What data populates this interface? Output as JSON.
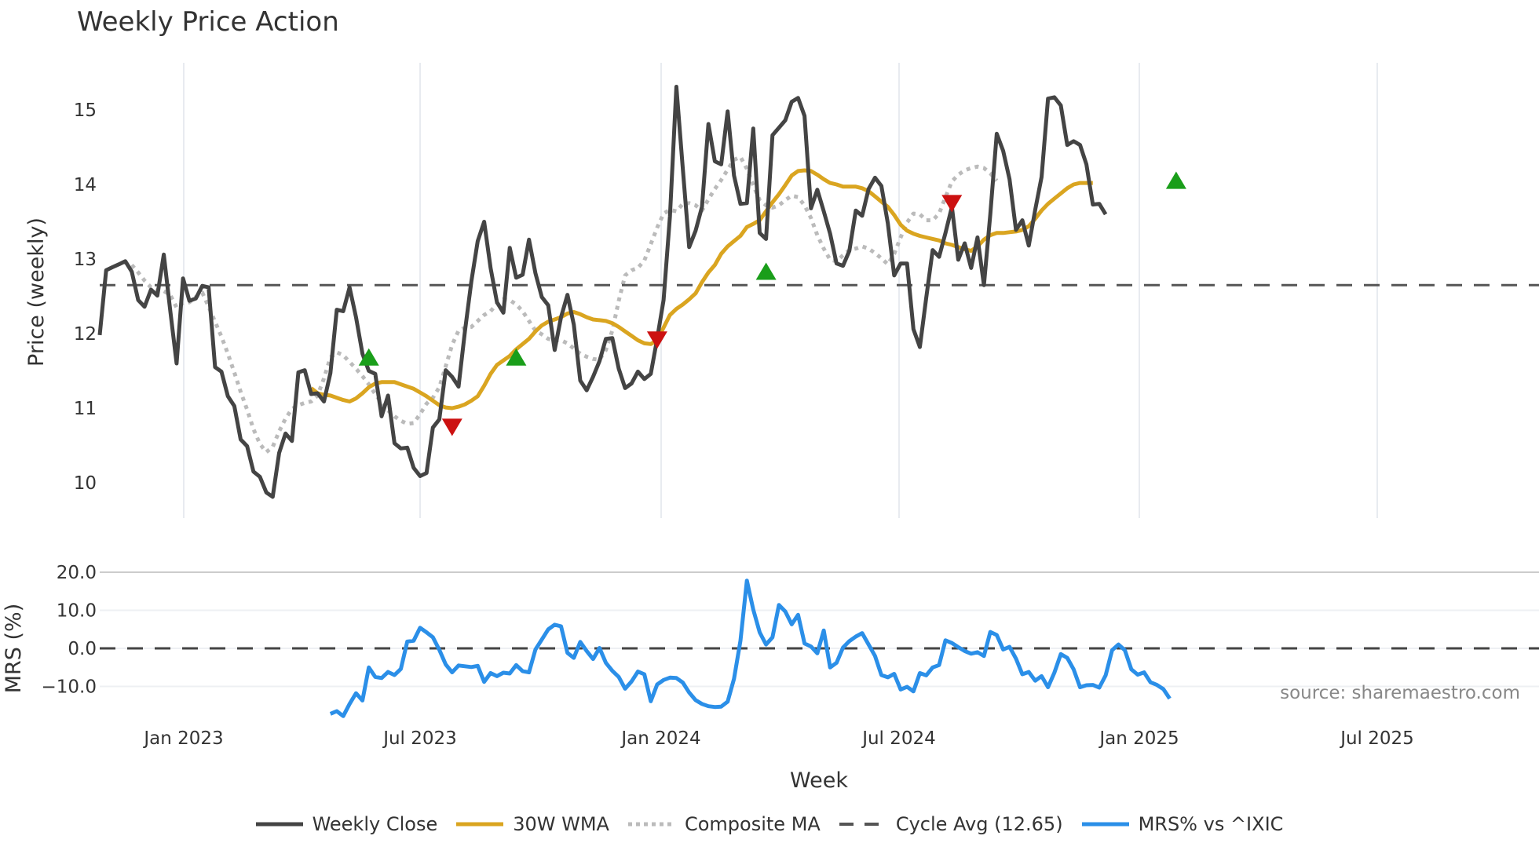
{
  "chart_data": {
    "type": "line",
    "title": "Weekly Price Action",
    "xlabel": "Week",
    "x_ticks": [
      "Jan 2023",
      "Jul 2023",
      "Jan 2024",
      "Jul 2024",
      "Jan 2025",
      "Jul 2025"
    ],
    "panels": [
      {
        "name": "price",
        "ylabel": "Price (weekly)",
        "ylim": [
          9.55,
          15.6
        ],
        "y_ticks": [
          10,
          11,
          12,
          13,
          14,
          15
        ],
        "grid": "vertical",
        "series": [
          {
            "name": "Weekly Close",
            "color": "#444444",
            "style": "solid",
            "start_week": 0,
            "values": [
              11.98,
              12.85,
              12.89,
              12.93,
              12.97,
              12.83,
              12.45,
              12.36,
              12.59,
              12.51,
              13.06,
              12.31,
              11.6,
              12.74,
              12.44,
              12.47,
              12.64,
              12.62,
              11.55,
              11.49,
              11.16,
              11.03,
              10.58,
              10.49,
              10.15,
              10.08,
              9.87,
              9.81,
              10.4,
              10.66,
              10.56,
              11.48,
              11.51,
              11.19,
              11.2,
              11.09,
              11.47,
              12.32,
              12.3,
              12.62,
              12.22,
              11.73,
              11.5,
              11.46,
              10.89,
              11.17,
              10.53,
              10.46,
              10.47,
              10.2,
              10.09,
              10.13,
              10.74,
              10.85,
              11.51,
              11.42,
              11.29,
              12.03,
              12.7,
              13.24,
              13.5,
              12.88,
              12.42,
              12.28,
              13.15,
              12.75,
              12.79,
              13.26,
              12.81,
              12.49,
              12.38,
              11.78,
              12.22,
              12.52,
              12.12,
              11.37,
              11.24,
              11.42,
              11.63,
              11.93,
              11.94,
              11.53,
              11.27,
              11.33,
              11.49,
              11.39,
              11.46,
              11.93,
              12.45,
              13.57,
              15.31,
              14.21,
              13.16,
              13.38,
              13.7,
              14.81,
              14.31,
              14.27,
              14.98,
              14.12,
              13.74,
              13.75,
              14.75,
              13.35,
              13.27,
              14.66,
              14.76,
              14.86,
              15.11,
              15.16,
              14.92,
              13.68,
              13.93,
              13.64,
              13.34,
              12.94,
              12.91,
              13.11,
              13.65,
              13.58,
              13.94,
              14.09,
              13.98,
              13.48,
              12.78,
              12.94,
              12.94,
              12.06,
              11.82,
              12.48,
              13.12,
              13.03,
              13.35,
              13.7,
              12.99,
              13.21,
              12.88,
              13.29,
              12.65,
              13.6,
              14.68,
              14.45,
              14.07,
              13.39,
              13.52,
              13.18,
              13.66,
              14.1,
              15.15,
              15.17,
              15.06,
              14.53,
              14.58,
              14.53,
              14.27,
              13.73,
              13.74,
              13.6
            ]
          },
          {
            "name": "30W WMA",
            "color": "#DAA520",
            "style": "solid",
            "start_week": 33,
            "values": [
              11.27,
              11.2,
              11.18,
              11.17,
              11.14,
              11.11,
              11.09,
              11.13,
              11.2,
              11.28,
              11.33,
              11.35,
              11.35,
              11.35,
              11.32,
              11.29,
              11.26,
              11.21,
              11.16,
              11.1,
              11.04,
              11.01,
              11.0,
              11.02,
              11.05,
              11.1,
              11.16,
              11.3,
              11.46,
              11.58,
              11.64,
              11.7,
              11.79,
              11.86,
              11.93,
              12.03,
              12.11,
              12.16,
              12.19,
              12.22,
              12.27,
              12.29,
              12.26,
              12.22,
              12.19,
              12.18,
              12.17,
              12.14,
              12.09,
              12.03,
              11.97,
              11.91,
              11.87,
              11.86,
              11.91,
              12.08,
              12.25,
              12.33,
              12.39,
              12.46,
              12.54,
              12.69,
              12.82,
              12.92,
              13.07,
              13.17,
              13.24,
              13.31,
              13.43,
              13.47,
              13.52,
              13.64,
              13.76,
              13.87,
              13.99,
              14.12,
              14.18,
              14.19,
              14.18,
              14.13,
              14.07,
              14.02,
              14.0,
              13.97,
              13.97,
              13.97,
              13.95,
              13.91,
              13.84,
              13.77,
              13.7,
              13.59,
              13.46,
              13.38,
              13.34,
              13.31,
              13.29,
              13.27,
              13.25,
              13.21,
              13.19,
              13.16,
              13.13,
              13.11,
              13.17,
              13.26,
              13.32,
              13.35,
              13.35,
              13.36,
              13.37,
              13.39,
              13.44,
              13.54,
              13.65,
              13.74,
              13.81,
              13.88,
              13.95,
              14.0,
              14.02,
              14.02,
              14.02
            ]
          },
          {
            "name": "Composite MA",
            "color": "#BBBBBB",
            "style": "dotted",
            "start_week": 5,
            "values": [
              12.92,
              12.82,
              12.71,
              12.62,
              12.58,
              12.57,
              12.52,
              12.35,
              12.41,
              12.42,
              12.49,
              12.55,
              12.36,
              12.16,
              11.96,
              11.73,
              11.48,
              11.22,
              10.98,
              10.72,
              10.52,
              10.41,
              10.48,
              10.69,
              10.86,
              10.99,
              11.04,
              11.07,
              11.09,
              11.17,
              11.4,
              11.68,
              11.75,
              11.71,
              11.62,
              11.53,
              11.43,
              11.32,
              11.19,
              11.07,
              10.97,
              10.89,
              10.83,
              10.79,
              10.8,
              10.92,
              11.06,
              11.14,
              11.28,
              11.56,
              11.85,
              12.04,
              12.08,
              12.09,
              12.17,
              12.25,
              12.3,
              12.4,
              12.46,
              12.45,
              12.39,
              12.3,
              12.17,
              12.04,
              11.99,
              11.93,
              11.91,
              11.91,
              11.87,
              11.8,
              11.73,
              11.69,
              11.66,
              11.65,
              11.78,
              12.04,
              12.44,
              12.78,
              12.85,
              12.88,
              12.98,
              13.2,
              13.42,
              13.61,
              13.66,
              13.64,
              13.74,
              13.75,
              13.72,
              13.65,
              13.8,
              13.94,
              14.06,
              14.2,
              14.33,
              14.37,
              14.21,
              13.99,
              13.79,
              13.72,
              13.69,
              13.72,
              13.79,
              13.85,
              13.83,
              13.72,
              13.55,
              13.32,
              13.14,
              12.99,
              12.97,
              13.05,
              13.12,
              13.14,
              13.17,
              13.14,
              13.08,
              13.01,
              12.93,
              13.07,
              13.29,
              13.49,
              13.61,
              13.6,
              13.52,
              13.52,
              13.61,
              13.83,
              14.04,
              14.13,
              14.19,
              14.22,
              14.24,
              14.22,
              14.15,
              14.05
            ]
          },
          {
            "name": "Cycle Avg (12.65)",
            "color": "#555555",
            "style": "dashed",
            "value": 12.65
          }
        ],
        "markers": [
          {
            "type": "buy",
            "shape": "triangle-up",
            "color": "#1A9E1A",
            "week": 42,
            "value": 11.68
          },
          {
            "type": "buy",
            "shape": "triangle-up",
            "color": "#1A9E1A",
            "week": 65,
            "value": 11.68
          },
          {
            "type": "buy",
            "shape": "triangle-up",
            "color": "#1A9E1A",
            "week": 104,
            "value": 12.83
          },
          {
            "type": "buy",
            "shape": "triangle-up",
            "color": "#1A9E1A",
            "week": 168,
            "value": 14.05
          },
          {
            "type": "sell",
            "shape": "triangle-down",
            "color": "#CC1111",
            "week": 55,
            "value": 10.75
          },
          {
            "type": "sell",
            "shape": "triangle-down",
            "color": "#CC1111",
            "week": 87,
            "value": 11.92
          },
          {
            "type": "sell",
            "shape": "triangle-down",
            "color": "#CC1111",
            "week": 133,
            "value": 13.75
          }
        ]
      },
      {
        "name": "mrs",
        "ylabel": "MRS (%)",
        "ylim": [
          -17,
          20
        ],
        "y_ticks": [
          "20.0",
          "10.0",
          "0.0",
          "−10.0"
        ],
        "zero_line": "dashed",
        "series": [
          {
            "name": "MRS% vs ^IXIC",
            "color": "#2B8FE8",
            "style": "solid",
            "start_week": 36,
            "values": [
              -17.2,
              -16.5,
              -17.8,
              -14.6,
              -11.8,
              -13.7,
              -5.0,
              -7.5,
              -7.8,
              -6.2,
              -7.0,
              -5.4,
              1.8,
              2.0,
              5.4,
              4.2,
              2.9,
              -0.4,
              -4.2,
              -6.3,
              -4.5,
              -4.7,
              -4.9,
              -4.6,
              -8.8,
              -6.5,
              -7.3,
              -6.4,
              -6.6,
              -4.4,
              -6.0,
              -6.3,
              -0.3,
              2.3,
              5.0,
              6.2,
              5.8,
              -1.2,
              -2.5,
              1.7,
              -0.7,
              -2.8,
              0.1,
              -3.8,
              -5.9,
              -7.5,
              -10.6,
              -8.7,
              -6.1,
              -6.8,
              -13.9,
              -9.5,
              -8.3,
              -7.7,
              -7.8,
              -9.0,
              -11.6,
              -13.6,
              -14.6,
              -15.2,
              -15.4,
              -15.3,
              -14.0,
              -8.0,
              2.0,
              17.8,
              10.2,
              4.2,
              1.0,
              2.9,
              11.4,
              9.7,
              6.3,
              8.8,
              1.3,
              0.5,
              -1.3,
              4.7,
              -5.0,
              -3.8,
              0.2,
              1.9,
              3.1,
              4.0,
              1.0,
              -2.0,
              -7.0,
              -7.6,
              -6.7,
              -10.8,
              -10.1,
              -11.3,
              -6.5,
              -7.1,
              -5.0,
              -4.4,
              2.1,
              1.4,
              0.3,
              -0.7,
              -1.4,
              -1.0,
              -2.0,
              4.3,
              3.5,
              -0.3,
              0.4,
              -2.7,
              -6.8,
              -6.2,
              -8.5,
              -7.3,
              -10.2,
              -6.4,
              -1.5,
              -2.5,
              -5.5,
              -10.2,
              -9.7,
              -9.6,
              -10.3,
              -7.1,
              -0.5,
              1.0,
              -0.5,
              -5.5,
              -6.9,
              -6.3,
              -8.9,
              -9.6,
              -10.7,
              -13.2
            ]
          }
        ]
      }
    ],
    "legend": {
      "position": "bottom",
      "entries": [
        "Weekly Close",
        "30W WMA",
        "Composite MA",
        "Cycle Avg (12.65)",
        "MRS% vs ^IXIC"
      ]
    },
    "annotations": [
      "source: sharemaestro.com"
    ]
  },
  "labels": {
    "title": "Weekly Price Action",
    "price_ylabel": "Price (weekly)",
    "mrs_ylabel": "MRS (%)",
    "xlabel": "Week",
    "source": "source: sharemaestro.com",
    "legend": [
      "Weekly Close",
      "30W WMA",
      "Composite MA",
      "Cycle Avg (12.65)",
      "MRS% vs ^IXIC"
    ]
  }
}
